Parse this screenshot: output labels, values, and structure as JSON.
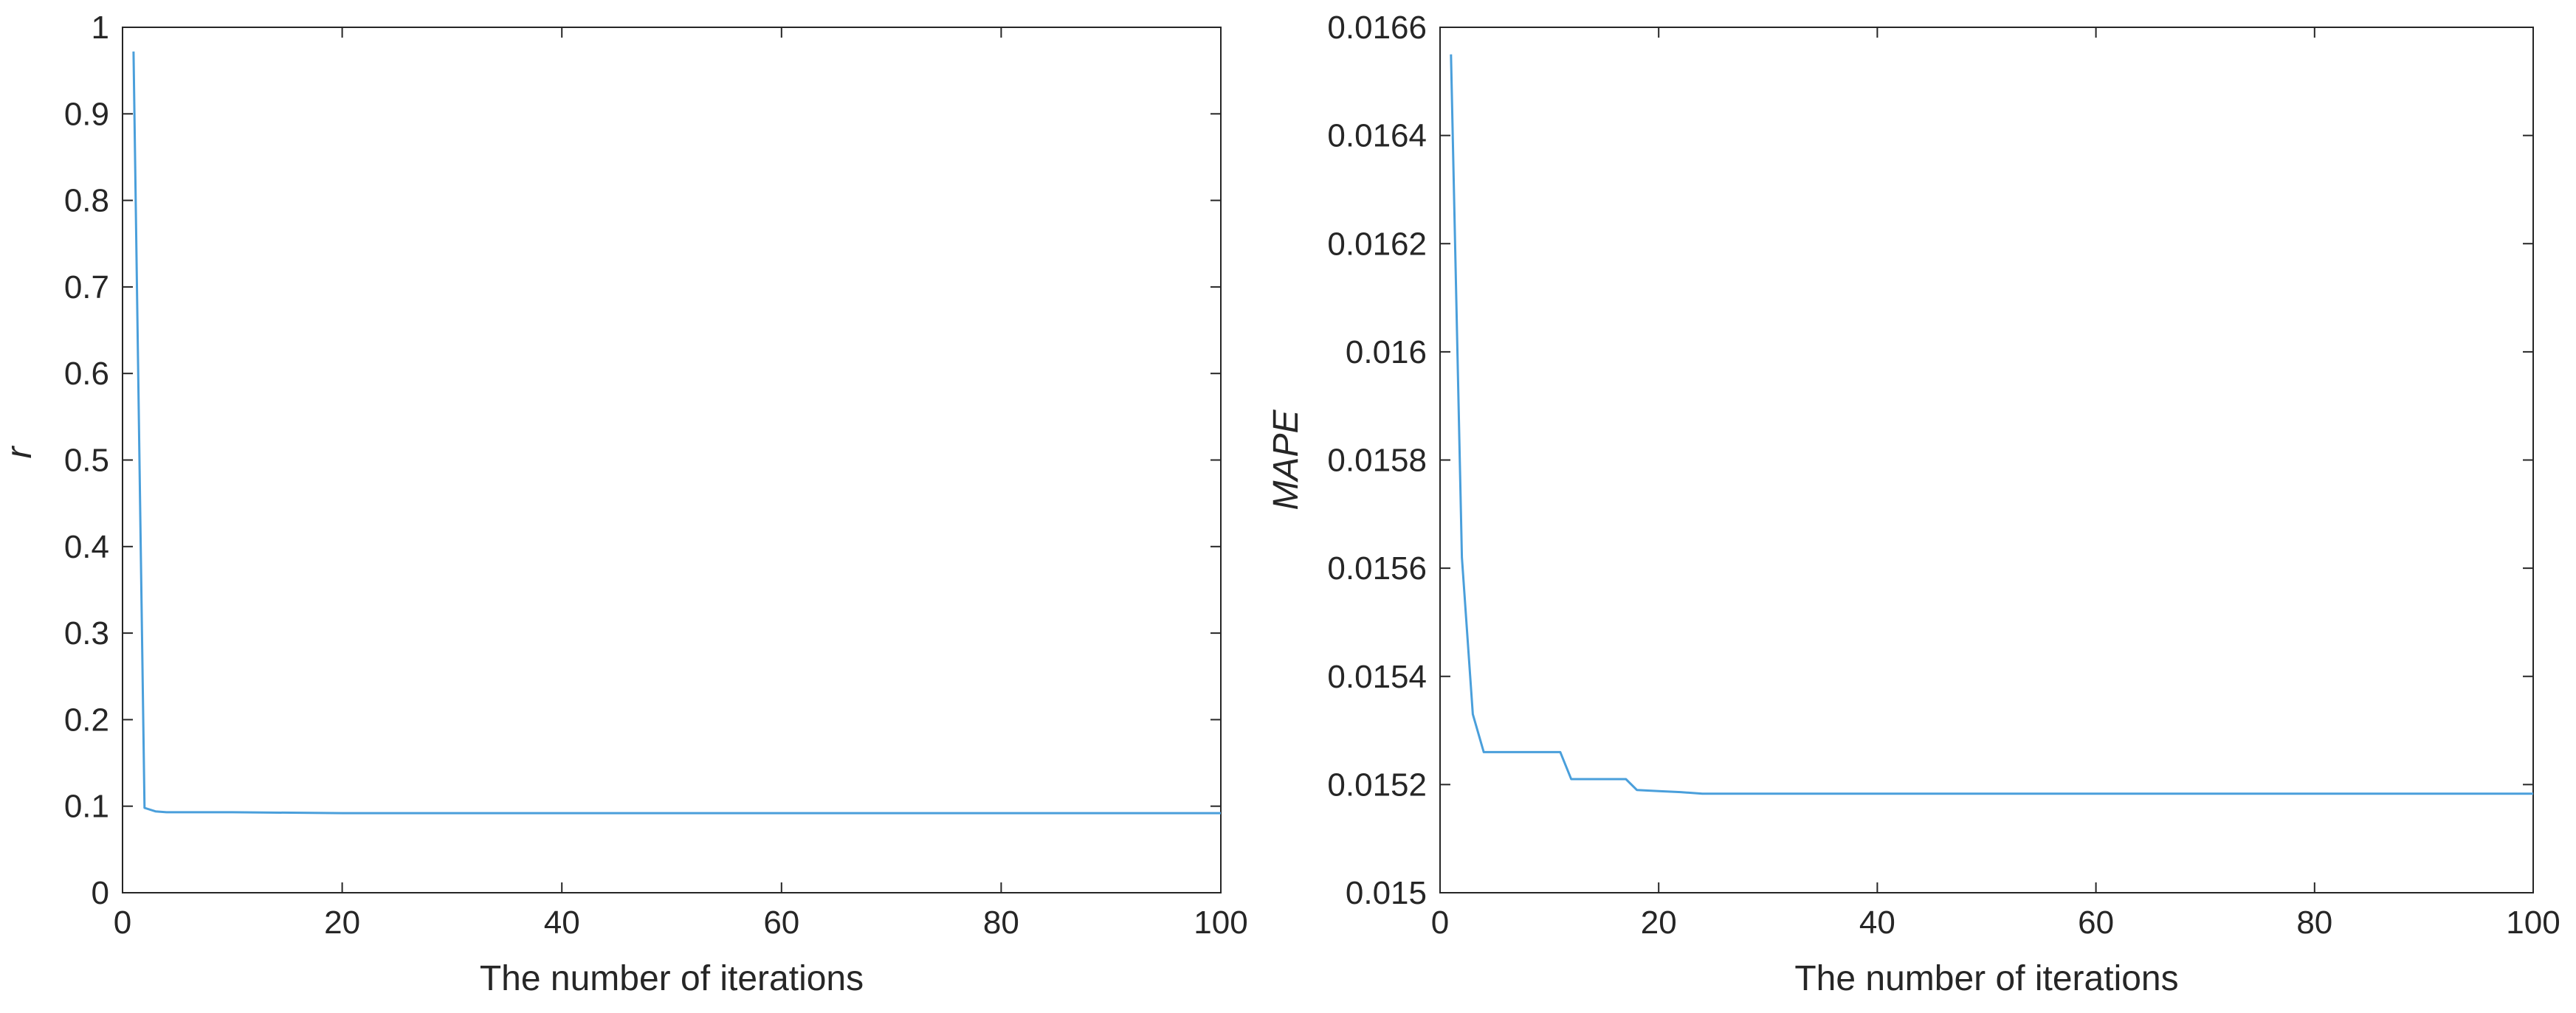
{
  "chart_data": [
    {
      "type": "line",
      "title": "",
      "xlabel": "The number of iterations",
      "ylabel": "r",
      "xlim": [
        0,
        100
      ],
      "ylim": [
        0,
        1
      ],
      "xticks": [
        0,
        20,
        40,
        60,
        80,
        100
      ],
      "yticks": [
        0,
        0.1,
        0.2,
        0.3,
        0.4,
        0.5,
        0.6,
        0.7,
        0.8,
        0.9,
        1
      ],
      "ytick_labels": [
        "0",
        "0.1",
        "0.2",
        "0.3",
        "0.4",
        "0.5",
        "0.6",
        "0.7",
        "0.8",
        "0.9",
        "1"
      ],
      "grid": false,
      "series": [
        {
          "color": "#4a9fdb",
          "x": [
            1,
            2,
            3,
            4,
            6,
            10,
            20,
            30,
            50,
            70,
            100
          ],
          "y": [
            0.972,
            0.098,
            0.094,
            0.093,
            0.093,
            0.093,
            0.092,
            0.092,
            0.092,
            0.092,
            0.092
          ]
        }
      ]
    },
    {
      "type": "line",
      "title": "",
      "xlabel": "The number of iterations",
      "ylabel": "MAPE",
      "xlim": [
        0,
        100
      ],
      "ylim": [
        0.015,
        0.0166
      ],
      "xticks": [
        0,
        20,
        40,
        60,
        80,
        100
      ],
      "yticks": [
        0.015,
        0.0152,
        0.0154,
        0.0156,
        0.0158,
        0.016,
        0.0162,
        0.0164,
        0.0166
      ],
      "ytick_labels": [
        "0.015",
        "0.0152",
        "0.0154",
        "0.0156",
        "0.0158",
        "0.016",
        "0.0162",
        "0.0164",
        "0.0166"
      ],
      "grid": false,
      "series": [
        {
          "color": "#4a9fdb",
          "x": [
            1,
            2,
            3,
            4,
            5,
            11,
            12,
            17,
            18,
            20,
            22,
            24,
            30,
            50,
            100
          ],
          "y": [
            0.01655,
            0.01562,
            0.01533,
            0.01526,
            0.01526,
            0.01526,
            0.01521,
            0.01521,
            0.01519,
            0.015188,
            0.015186,
            0.015183,
            0.015183,
            0.015183,
            0.015183
          ]
        }
      ]
    }
  ]
}
